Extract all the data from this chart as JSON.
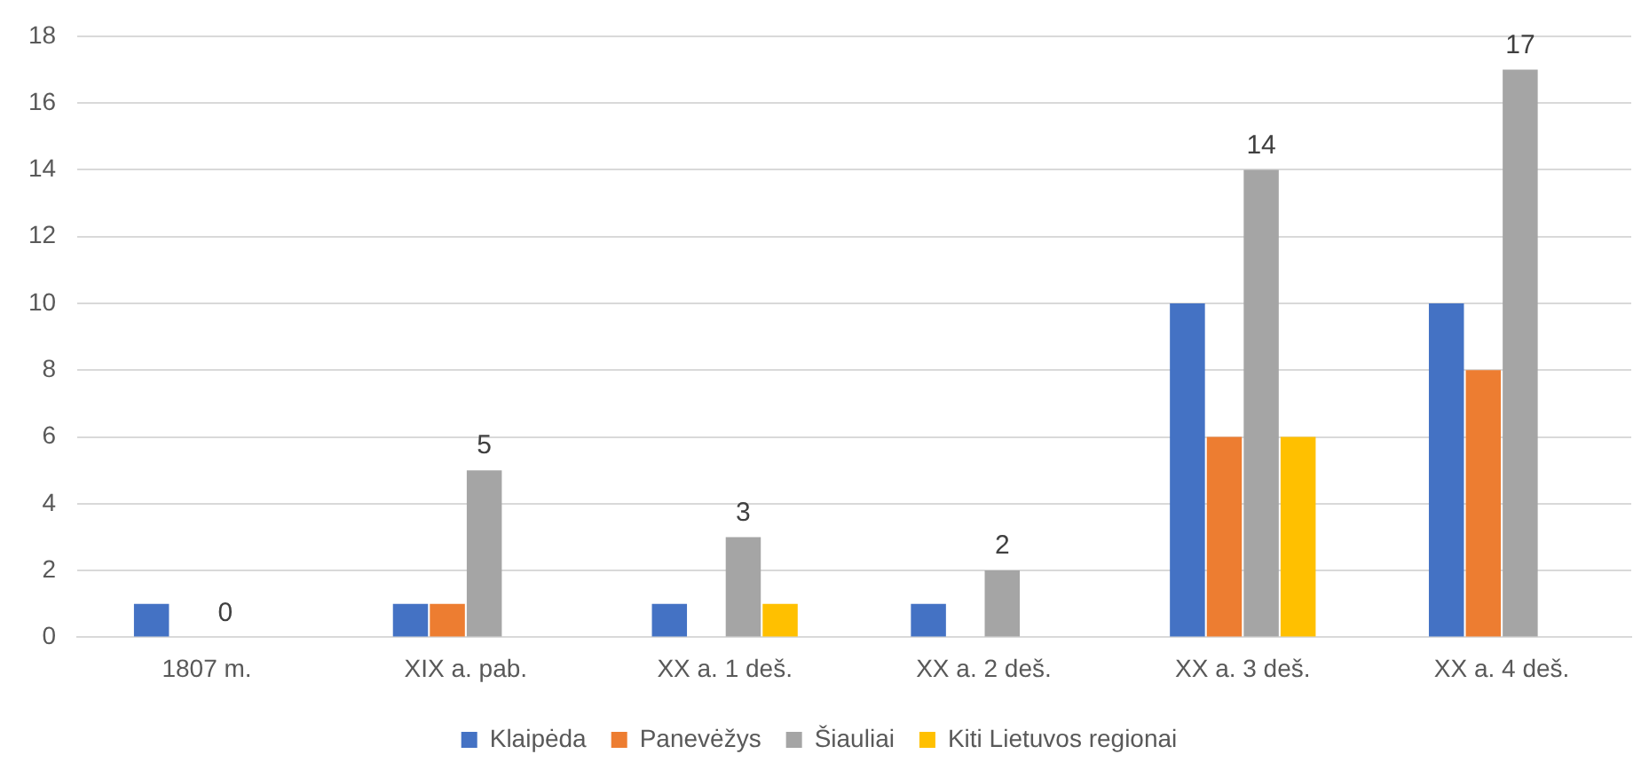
{
  "chart_data": {
    "type": "bar",
    "categories": [
      "1807 m.",
      "XIX a. pab.",
      "XX a. 1 deš.",
      "XX a. 2 deš.",
      "XX a. 3 deš.",
      "XX a. 4 deš."
    ],
    "series": [
      {
        "name": "Klaipėda",
        "color": "#4472c4",
        "values": [
          1,
          1,
          1,
          1,
          10,
          10
        ]
      },
      {
        "name": "Panevėžys",
        "color": "#ed7d31",
        "values": [
          null,
          1,
          null,
          null,
          6,
          8
        ]
      },
      {
        "name": "Šiauliai",
        "color": "#a5a5a5",
        "values": [
          0,
          5,
          3,
          2,
          14,
          17
        ],
        "value_labels": [
          "0",
          "5",
          "3",
          "2",
          "14",
          "17"
        ]
      },
      {
        "name": "Kiti Lietuvos regionai",
        "color": "#ffc000",
        "values": [
          null,
          null,
          1,
          null,
          6,
          null
        ]
      }
    ],
    "ylim": [
      0,
      18
    ],
    "yticks": [
      0,
      2,
      4,
      6,
      8,
      10,
      12,
      14,
      16,
      18
    ],
    "grid": "y",
    "legend": "bottom"
  }
}
